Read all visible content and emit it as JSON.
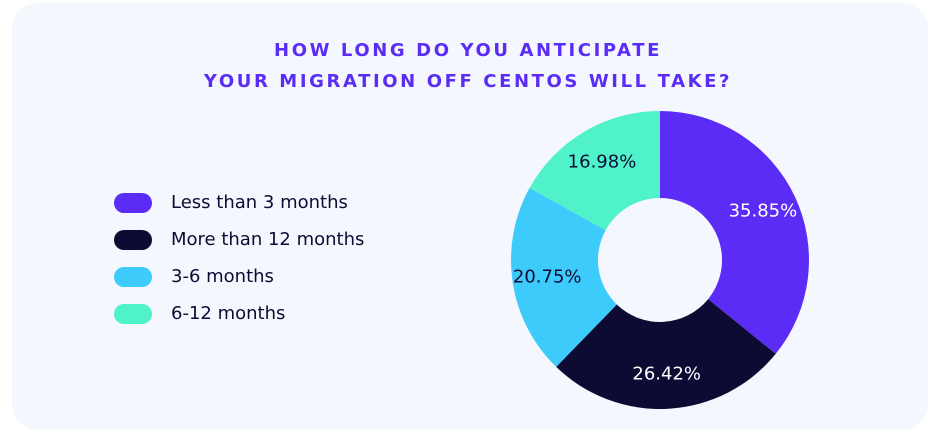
{
  "chart_data": {
    "type": "pie",
    "variant": "donut",
    "title_lines": [
      "HOW LONG DO YOU ANTICIPATE",
      "YOUR MIGRATION OFF CENTOS WILL TAKE?"
    ],
    "legend_placement": "left",
    "slices": [
      {
        "label": "Less than 3 months",
        "value": 35.85,
        "value_label": "35.85%",
        "color": "#5b2cf6",
        "label_color": "#ffffff"
      },
      {
        "label": "More than 12 months",
        "value": 26.42,
        "value_label": "26.42%",
        "color": "#0d0b33",
        "label_color": "#ffffff"
      },
      {
        "label": "3-6 months",
        "value": 20.75,
        "value_label": "20.75%",
        "color": "#3ccbfb",
        "label_color": "#0d0b33"
      },
      {
        "label": "6-12 months",
        "value": 16.98,
        "value_label": "16.98%",
        "color": "#50f2c9",
        "label_color": "#0d0b33"
      }
    ]
  }
}
